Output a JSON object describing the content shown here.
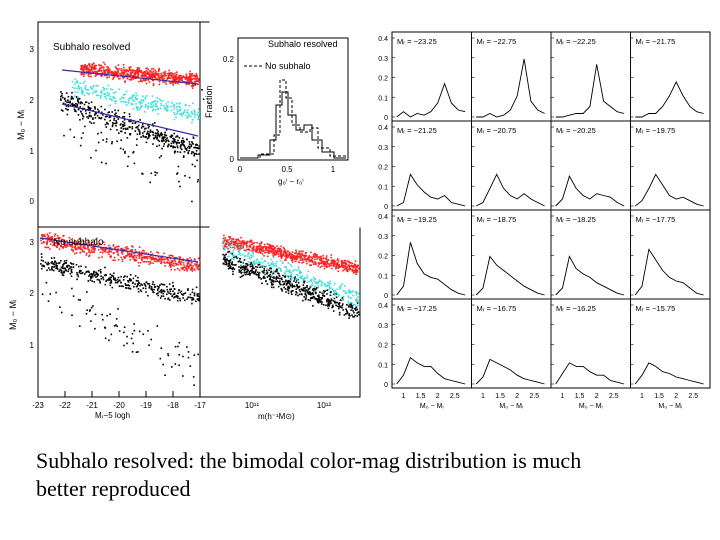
{
  "caption": {
    "line1": "Subhalo resolved: the bimodal color-mag distribution is much",
    "line2": "better reproduced"
  },
  "colors": {
    "red": "#ff2020",
    "cyan": "#38e0e0",
    "black": "#000000",
    "blue_line": "#3a2aa8"
  },
  "left_figure": {
    "top_panel_label": "Subhalo resolved",
    "bottom_panel_label": "No subhalo",
    "y_label_top": "M₀ − Mᵢ",
    "y_label_bottom": "M₀ − Mᵢ",
    "y_ticks_top": [
      "1",
      "2",
      "3"
    ],
    "y_ticks_bottom": [
      "1",
      "2",
      "3"
    ],
    "y_tick_zero": "0",
    "x_label_left": "Mᵣ−5 logh",
    "x_ticks_left": [
      "-23",
      "-22",
      "-21",
      "-20",
      "-19",
      "-18",
      "-17"
    ],
    "x_label_right": "m(h⁻¹M⊙)",
    "x_ticks_right": [
      "10¹¹",
      "10¹²"
    ]
  },
  "inset": {
    "title": "Subhalo resolved",
    "legend": "No subhalo",
    "y_label": "Fraction",
    "y_ticks": [
      "0",
      "0.1",
      "0.2"
    ],
    "x_ticks": [
      "0",
      "0.5",
      "1"
    ],
    "x_label": "g₀ⁱ − r₀ⁱ"
  },
  "chart_data": {
    "type": "line",
    "title": "",
    "xlabel": "M₀ − Mᵢ",
    "ylabel": "",
    "y_ticks": [
      "0",
      "0.1",
      "0.2",
      "0.3",
      "0.4"
    ],
    "x_ticks": [
      "1",
      "1.5",
      "2",
      "2.5"
    ],
    "panels": [
      {
        "label": "Mᵣ = −23.25",
        "x": [
          0.8,
          1.0,
          1.2,
          1.4,
          1.6,
          1.8,
          2.0,
          2.2,
          2.4,
          2.6,
          2.8
        ],
        "y": [
          0.0,
          0.03,
          0.0,
          0.02,
          0.01,
          0.03,
          0.08,
          0.19,
          0.08,
          0.04,
          0.03
        ]
      },
      {
        "label": "Mᵣ = −22.75",
        "x": [
          0.8,
          1.0,
          1.2,
          1.4,
          1.6,
          1.8,
          2.0,
          2.2,
          2.4,
          2.6,
          2.8
        ],
        "y": [
          0.0,
          0.0,
          0.02,
          0.0,
          0.01,
          0.04,
          0.12,
          0.33,
          0.09,
          0.04,
          0.02
        ]
      },
      {
        "label": "Mᵣ = −22.25",
        "x": [
          0.8,
          1.0,
          1.2,
          1.4,
          1.6,
          1.8,
          2.0,
          2.2,
          2.4,
          2.6,
          2.8
        ],
        "y": [
          0.0,
          0.0,
          0.01,
          0.02,
          0.02,
          0.06,
          0.3,
          0.09,
          0.06,
          0.03,
          0.02
        ]
      },
      {
        "label": "Mᵣ = −21.75",
        "x": [
          0.8,
          1.0,
          1.2,
          1.4,
          1.6,
          1.8,
          2.0,
          2.2,
          2.4,
          2.6,
          2.8
        ],
        "y": [
          0.0,
          0.0,
          0.02,
          0.02,
          0.06,
          0.12,
          0.2,
          0.12,
          0.06,
          0.03,
          0.02
        ]
      },
      {
        "label": "Mᵣ = −21.25",
        "x": [
          0.8,
          1.0,
          1.2,
          1.4,
          1.6,
          1.8,
          2.0,
          2.2,
          2.4,
          2.6,
          2.8
        ],
        "y": [
          0.0,
          0.02,
          0.18,
          0.12,
          0.08,
          0.05,
          0.04,
          0.06,
          0.02,
          0.01,
          0.0
        ]
      },
      {
        "label": "Mᵣ = −20.75",
        "x": [
          0.8,
          1.0,
          1.2,
          1.4,
          1.6,
          1.8,
          2.0,
          2.2,
          2.4,
          2.6,
          2.8
        ],
        "y": [
          0.0,
          0.02,
          0.1,
          0.18,
          0.1,
          0.06,
          0.04,
          0.07,
          0.04,
          0.02,
          0.0
        ]
      },
      {
        "label": "Mᵣ = −20.25",
        "x": [
          0.8,
          1.0,
          1.2,
          1.4,
          1.6,
          1.8,
          2.0,
          2.2,
          2.4,
          2.6,
          2.8
        ],
        "y": [
          0.0,
          0.04,
          0.17,
          0.1,
          0.06,
          0.04,
          0.07,
          0.06,
          0.05,
          0.02,
          0.0
        ]
      },
      {
        "label": "Mᵣ = −19.75",
        "x": [
          0.8,
          1.0,
          1.2,
          1.4,
          1.6,
          1.8,
          2.0,
          2.2,
          2.4,
          2.6,
          2.8
        ],
        "y": [
          0.0,
          0.03,
          0.1,
          0.18,
          0.12,
          0.06,
          0.04,
          0.05,
          0.03,
          0.01,
          0.0
        ]
      },
      {
        "label": "Mᵣ = −19.25",
        "x": [
          0.8,
          1.0,
          1.2,
          1.4,
          1.6,
          1.8,
          2.0,
          2.2,
          2.4,
          2.6,
          2.8
        ],
        "y": [
          0.0,
          0.05,
          0.3,
          0.18,
          0.12,
          0.1,
          0.09,
          0.06,
          0.03,
          0.01,
          0.0
        ]
      },
      {
        "label": "Mᵣ = −18.75",
        "x": [
          0.8,
          1.0,
          1.2,
          1.4,
          1.6,
          1.8,
          2.0,
          2.2,
          2.4,
          2.6,
          2.8
        ],
        "y": [
          0.0,
          0.04,
          0.22,
          0.17,
          0.14,
          0.11,
          0.08,
          0.05,
          0.03,
          0.01,
          0.0
        ]
      },
      {
        "label": "Mᵣ = −18.25",
        "x": [
          0.8,
          1.0,
          1.2,
          1.4,
          1.6,
          1.8,
          2.0,
          2.2,
          2.4,
          2.6,
          2.8
        ],
        "y": [
          0.0,
          0.04,
          0.22,
          0.15,
          0.12,
          0.1,
          0.07,
          0.05,
          0.03,
          0.01,
          0.0
        ]
      },
      {
        "label": "Mᵣ = −17.75",
        "x": [
          0.8,
          1.0,
          1.2,
          1.4,
          1.6,
          1.8,
          2.0,
          2.2,
          2.4,
          2.6,
          2.8
        ],
        "y": [
          0.0,
          0.05,
          0.26,
          0.2,
          0.14,
          0.1,
          0.08,
          0.07,
          0.04,
          0.01,
          0.0
        ]
      },
      {
        "label": "Mᵣ = −17.25",
        "x": [
          0.8,
          1.0,
          1.2,
          1.4,
          1.6,
          1.8,
          2.0,
          2.2,
          2.4,
          2.6,
          2.8
        ],
        "y": [
          0.0,
          0.05,
          0.15,
          0.12,
          0.1,
          0.1,
          0.06,
          0.03,
          0.02,
          0.01,
          0.0
        ]
      },
      {
        "label": "Mᵣ = −16.75",
        "x": [
          0.8,
          1.0,
          1.2,
          1.4,
          1.6,
          1.8,
          2.0,
          2.2,
          2.4,
          2.6,
          2.8
        ],
        "y": [
          0.0,
          0.04,
          0.14,
          0.12,
          0.1,
          0.08,
          0.05,
          0.03,
          0.02,
          0.01,
          0.0
        ]
      },
      {
        "label": "Mᵣ = −16.25",
        "x": [
          0.8,
          1.0,
          1.2,
          1.4,
          1.6,
          1.8,
          2.0,
          2.2,
          2.4,
          2.6,
          2.8
        ],
        "y": [
          0.0,
          0.06,
          0.12,
          0.1,
          0.1,
          0.07,
          0.05,
          0.05,
          0.02,
          0.01,
          0.0
        ]
      },
      {
        "label": "Mᵣ = −15.75",
        "x": [
          0.8,
          1.0,
          1.2,
          1.4,
          1.6,
          1.8,
          2.0,
          2.2,
          2.4,
          2.6,
          2.8
        ],
        "y": [
          0.0,
          0.05,
          0.12,
          0.1,
          0.07,
          0.06,
          0.04,
          0.03,
          0.02,
          0.01,
          0.0
        ]
      }
    ]
  }
}
